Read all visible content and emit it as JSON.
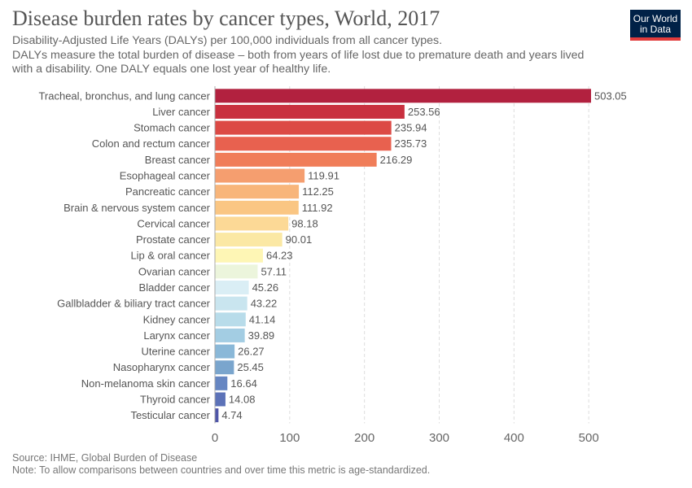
{
  "title": "Disease burden rates by cancer types, World, 2017",
  "subtitle_line1": "Disability-Adjusted Life Years (DALYs) per 100,000 individuals from all cancer types.",
  "subtitle_line2": "DALYs measure the total burden of disease – both from years of life lost due to premature death and years lived with a disability. One DALY equals one lost year of healthy life.",
  "logo": {
    "line1": "Our World",
    "line2": "in Data"
  },
  "source": "Source: IHME, Global Burden of Disease",
  "note": "Note: To allow comparisons between countries and over time this metric is age-standardized.",
  "chart_data": {
    "type": "bar",
    "orientation": "horizontal",
    "categories": [
      "Tracheal, bronchus, and lung cancer",
      "Liver cancer",
      "Stomach cancer",
      "Colon and rectum cancer",
      "Breast cancer",
      "Esophageal cancer",
      "Pancreatic cancer",
      "Brain & nervous system cancer",
      "Cervical cancer",
      "Prostate cancer",
      "Lip & oral cancer",
      "Ovarian cancer",
      "Bladder cancer",
      "Gallbladder & biliary tract cancer",
      "Kidney cancer",
      "Larynx cancer",
      "Uterine cancer",
      "Nasopharynx cancer",
      "Non-melanoma skin cancer",
      "Thyroid cancer",
      "Testicular cancer"
    ],
    "values": [
      503.05,
      253.56,
      235.94,
      235.73,
      216.29,
      119.91,
      112.25,
      111.92,
      98.18,
      90.01,
      64.23,
      57.11,
      45.26,
      43.22,
      41.14,
      39.89,
      26.27,
      25.45,
      16.64,
      14.08,
      4.74
    ],
    "value_labels": [
      "503.05",
      "253.56",
      "235.94",
      "235.73",
      "216.29",
      "119.91",
      "112.25",
      "111.92",
      "98.18",
      "90.01",
      "64.23",
      "57.11",
      "45.26",
      "43.22",
      "41.14",
      "39.89",
      "26.27",
      "25.45",
      "16.64",
      "14.08",
      "4.74"
    ],
    "colors": [
      "#b2213f",
      "#c9303f",
      "#dc4a45",
      "#e8614f",
      "#f07d59",
      "#f59e6f",
      "#f8b57a",
      "#fac683",
      "#fcd996",
      "#fbe8a4",
      "#fef6b5",
      "#ecf5dc",
      "#daeef5",
      "#c9e5ef",
      "#b8dcea",
      "#a3cde3",
      "#8ab8d8",
      "#7aa5cd",
      "#6686c2",
      "#5c72b8",
      "#4f55a8"
    ],
    "xticks": [
      0,
      100,
      200,
      300,
      400,
      500
    ],
    "xtick_labels": [
      "0",
      "100",
      "200",
      "300",
      "400",
      "500"
    ],
    "xlim": [
      0,
      503.05
    ],
    "xlabel": "",
    "ylabel": "",
    "grid": "vertical dashed"
  }
}
